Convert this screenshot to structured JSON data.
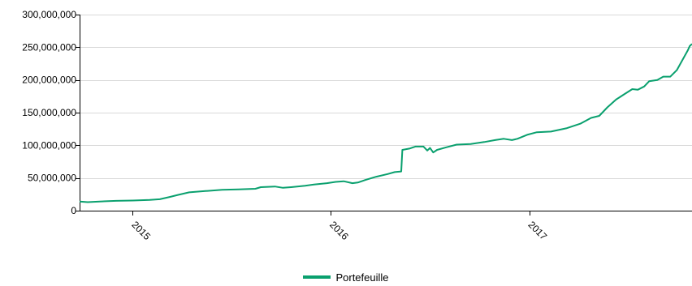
{
  "chart_data": {
    "type": "line",
    "title": "",
    "xlabel": "",
    "ylabel": "",
    "ylim": [
      0,
      300000000
    ],
    "xlim": [
      "2014-09-25",
      "2017-10-28"
    ],
    "grid": true,
    "legend_placement": "bottom-center",
    "y_ticks": [
      {
        "value": 0,
        "label": "0"
      },
      {
        "value": 50000000,
        "label": "50,000,000"
      },
      {
        "value": 100000000,
        "label": "100,000,000"
      },
      {
        "value": 150000000,
        "label": "150,000,000"
      },
      {
        "value": 200000000,
        "label": "200,000,000"
      },
      {
        "value": 250000000,
        "label": "250,000,000"
      },
      {
        "value": 300000000,
        "label": "300,000,000"
      }
    ],
    "x_ticks": [
      {
        "value": "2015-01-01",
        "label": "2015"
      },
      {
        "value": "2016-01-01",
        "label": "2016"
      },
      {
        "value": "2017-01-01",
        "label": "2017"
      }
    ],
    "series": [
      {
        "name": "Portefeuille",
        "color": "#0aa06e",
        "points": [
          [
            "2014-09-25",
            14000000
          ],
          [
            "2014-10-10",
            13000000
          ],
          [
            "2014-11-01",
            14000000
          ],
          [
            "2014-12-01",
            15000000
          ],
          [
            "2015-01-01",
            15500000
          ],
          [
            "2015-02-01",
            16500000
          ],
          [
            "2015-02-20",
            17500000
          ],
          [
            "2015-03-10",
            21000000
          ],
          [
            "2015-03-25",
            24000000
          ],
          [
            "2015-04-15",
            28000000
          ],
          [
            "2015-05-15",
            30000000
          ],
          [
            "2015-06-15",
            32000000
          ],
          [
            "2015-07-15",
            32500000
          ],
          [
            "2015-08-15",
            33500000
          ],
          [
            "2015-08-25",
            36000000
          ],
          [
            "2015-09-20",
            37000000
          ],
          [
            "2015-10-05",
            35000000
          ],
          [
            "2015-10-20",
            36000000
          ],
          [
            "2015-11-15",
            38000000
          ],
          [
            "2015-12-01",
            40000000
          ],
          [
            "2015-12-25",
            42000000
          ],
          [
            "2016-01-10",
            44000000
          ],
          [
            "2016-01-25",
            45000000
          ],
          [
            "2016-02-10",
            42000000
          ],
          [
            "2016-02-20",
            43000000
          ],
          [
            "2016-03-05",
            47000000
          ],
          [
            "2016-03-25",
            52000000
          ],
          [
            "2016-04-15",
            56000000
          ],
          [
            "2016-04-28",
            59000000
          ],
          [
            "2016-05-10",
            60000000
          ],
          [
            "2016-05-12",
            93000000
          ],
          [
            "2016-05-25",
            95000000
          ],
          [
            "2016-06-05",
            98000000
          ],
          [
            "2016-06-20",
            98000000
          ],
          [
            "2016-06-27",
            92000000
          ],
          [
            "2016-07-02",
            96000000
          ],
          [
            "2016-07-08",
            89000000
          ],
          [
            "2016-07-15",
            93000000
          ],
          [
            "2016-08-01",
            97000000
          ],
          [
            "2016-08-20",
            101000000
          ],
          [
            "2016-09-15",
            102000000
          ],
          [
            "2016-10-10",
            105000000
          ],
          [
            "2016-10-30",
            108000000
          ],
          [
            "2016-11-15",
            110000000
          ],
          [
            "2016-11-30",
            108000000
          ],
          [
            "2016-12-10",
            110000000
          ],
          [
            "2016-12-28",
            116000000
          ],
          [
            "2017-01-15",
            120000000
          ],
          [
            "2017-02-10",
            121000000
          ],
          [
            "2017-03-10",
            126000000
          ],
          [
            "2017-04-05",
            133000000
          ],
          [
            "2017-04-25",
            142000000
          ],
          [
            "2017-05-10",
            145000000
          ],
          [
            "2017-05-25",
            158000000
          ],
          [
            "2017-06-10",
            170000000
          ],
          [
            "2017-06-25",
            178000000
          ],
          [
            "2017-07-10",
            186000000
          ],
          [
            "2017-07-20",
            185000000
          ],
          [
            "2017-08-01",
            190000000
          ],
          [
            "2017-08-10",
            198000000
          ],
          [
            "2017-08-25",
            200000000
          ],
          [
            "2017-09-05",
            205000000
          ],
          [
            "2017-09-18",
            205000000
          ],
          [
            "2017-09-30",
            215000000
          ],
          [
            "2017-10-10",
            230000000
          ],
          [
            "2017-10-20",
            245000000
          ],
          [
            "2017-10-24",
            252000000
          ],
          [
            "2017-10-28",
            255000000
          ]
        ]
      }
    ]
  }
}
